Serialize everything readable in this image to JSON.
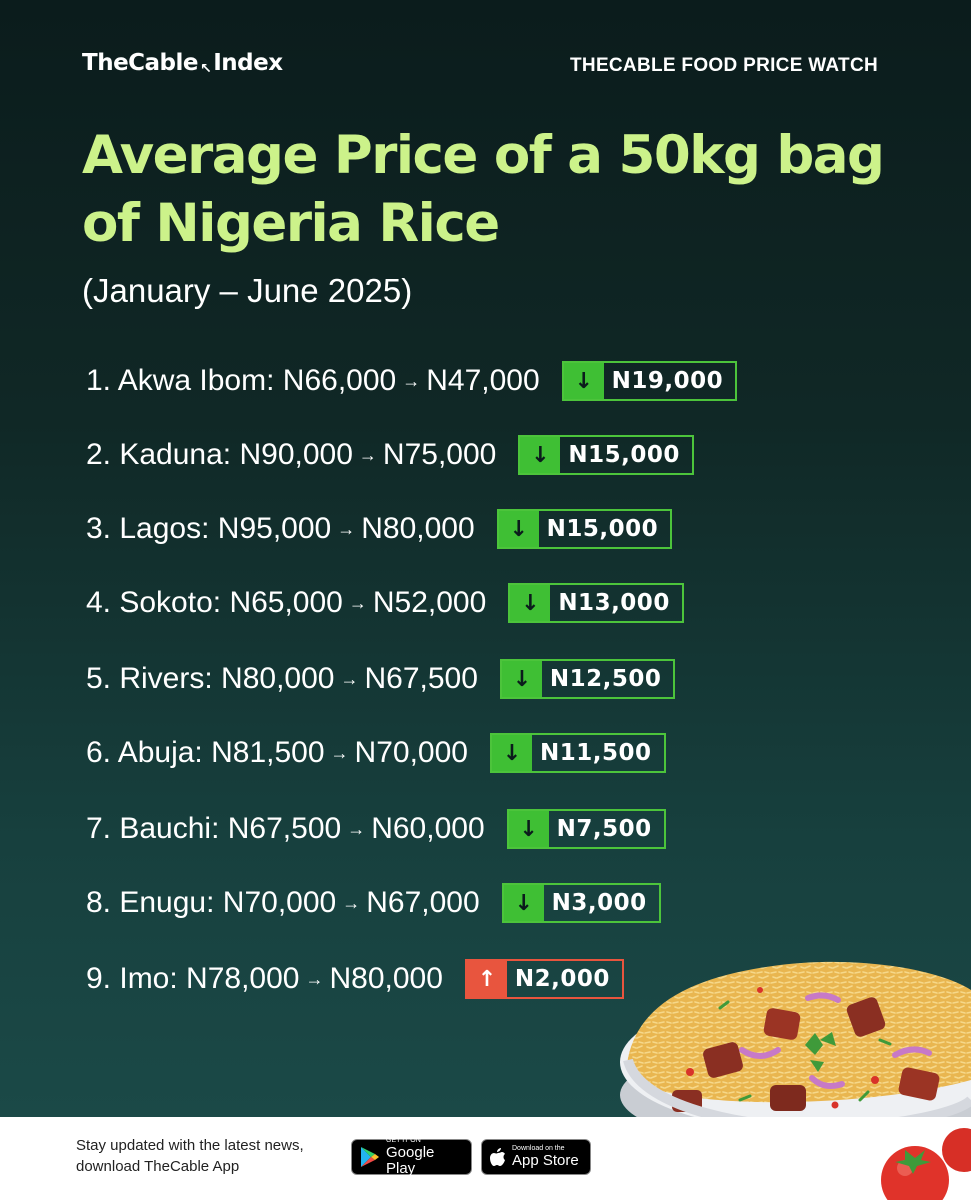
{
  "header": {
    "logo": "TheCable Index",
    "logo_part1": "TheCable",
    "logo_part2": "Index",
    "tagline": "THECABLE FOOD PRICE WATCH"
  },
  "title": "Average Price of a 50kg bag of Nigeria Rice",
  "subtitle": "(January – June 2025)",
  "rows": [
    {
      "label": "1. Akwa Ibom:",
      "from": "N66,000",
      "to": "N47,000",
      "change": "N19,000",
      "direction": "down"
    },
    {
      "label": "2. Kaduna:",
      "from": "N90,000",
      "to": "N75,000",
      "change": "N15,000",
      "direction": "down"
    },
    {
      "label": "3. Lagos:",
      "from": "N95,000",
      "to": "N80,000",
      "change": "N15,000",
      "direction": "down"
    },
    {
      "label": "4. Sokoto:",
      "from": "N65,000",
      "to": "N52,000",
      "change": "N13,000",
      "direction": "down"
    },
    {
      "label": "5. Rivers:",
      "from": "N80,000",
      "to": "N67,500",
      "change": "N12,500",
      "direction": "down"
    },
    {
      "label": "6. Abuja:",
      "from": "N81,500",
      "to": "N70,000",
      "change": "N11,500",
      "direction": "down"
    },
    {
      "label": "7. Bauchi:",
      "from": "N67,500",
      "to": "N60,000",
      "change": "N7,500",
      "direction": "down"
    },
    {
      "label": "8. Enugu:",
      "from": "N70,000",
      "to": "N67,000",
      "change": "N3,000",
      "direction": "down"
    },
    {
      "label": "9. Imo:",
      "from": "N78,000",
      "to": "N80,000",
      "change": "N2,000",
      "direction": "up"
    }
  ],
  "footer": {
    "line1": "Stay updated with the latest news,",
    "line2": "download TheCable App",
    "google_small": "GET IT ON",
    "google_big": "Google Play",
    "apple_small": "Download on the",
    "apple_big": "App Store"
  },
  "colors": {
    "title": "#ccf28a",
    "down": "#3fbf34",
    "up": "#e8553e"
  }
}
